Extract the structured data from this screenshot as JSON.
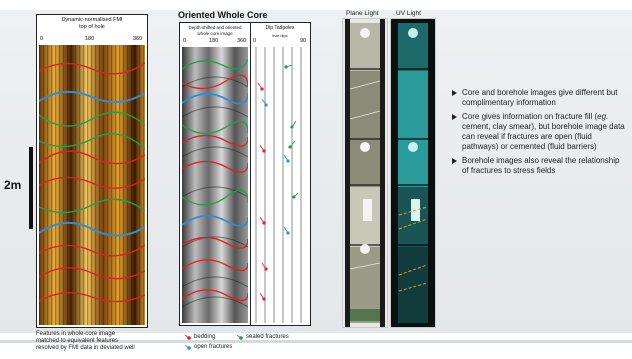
{
  "scale": {
    "label": "2m"
  },
  "fmi": {
    "title_line1": "Dynamic-normalised FMI",
    "title_line2": "top of hole",
    "ticks": [
      "0",
      "180",
      "360"
    ],
    "caption_line1": "Features in whole-core image",
    "caption_line2": "matched to equivalent features",
    "caption_line3": "resolved by FMI data in deviated well"
  },
  "core": {
    "title": "Oriented Whole Core",
    "image_label_line1": "Depth-shifted and oriented",
    "image_label_line2": "whole core image",
    "ticks": [
      "0",
      "180",
      "360"
    ],
    "dip_label": "Dip Tadpoles",
    "dip_sub": "true dips",
    "dip_ticks": [
      "0",
      "90"
    ]
  },
  "legend": {
    "bedding": "bedding",
    "sealed": "sealed fractures",
    "open": "open fractures"
  },
  "photos": {
    "plane": "Plane Light",
    "uv": "UV Light"
  },
  "bullets": {
    "b1": "Core and borehole images give different but complimentary information",
    "b2_pre": "Core gives information on fracture fill (",
    "b2_eg": "eg.",
    "b2_post": " cement, clay smear), but borehole image data can reveal if fractures are open (fluid pathways) or cemented (fluid barriers)",
    "b3": "Borehole images also reveal the relationship of fractures to stress fields"
  },
  "colors": {
    "bedding": "#e02020",
    "sealed": "#1fa04a",
    "open": "#2a8fd8"
  }
}
